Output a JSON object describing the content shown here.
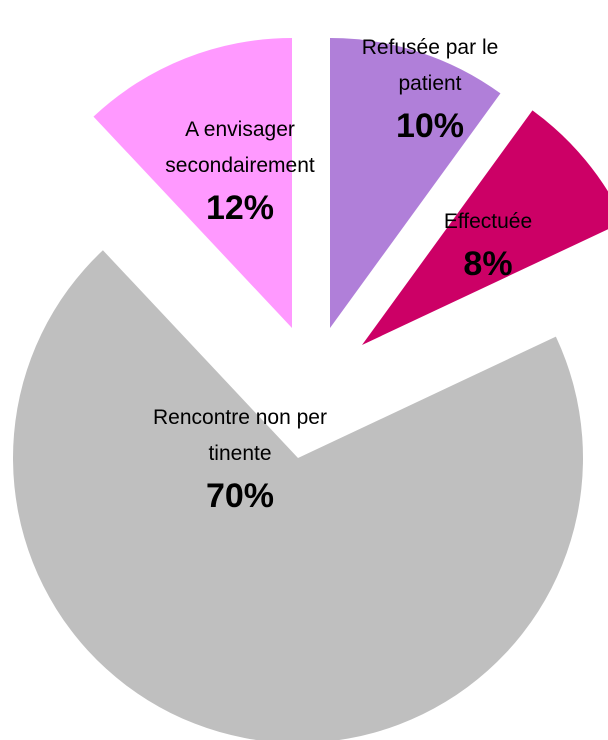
{
  "chart_data": {
    "type": "pie",
    "categories": [
      "Refusée par le patient",
      "Effectuée",
      "Rencontre non pertinente",
      "A envisager secondairement"
    ],
    "values": [
      10,
      8,
      70,
      12
    ],
    "value_labels": [
      "10%",
      "8%",
      "70%",
      "12%"
    ],
    "colors": [
      "#b07fd9",
      "#cc0066",
      "#bfbfbf",
      "#ff99ff"
    ]
  }
}
